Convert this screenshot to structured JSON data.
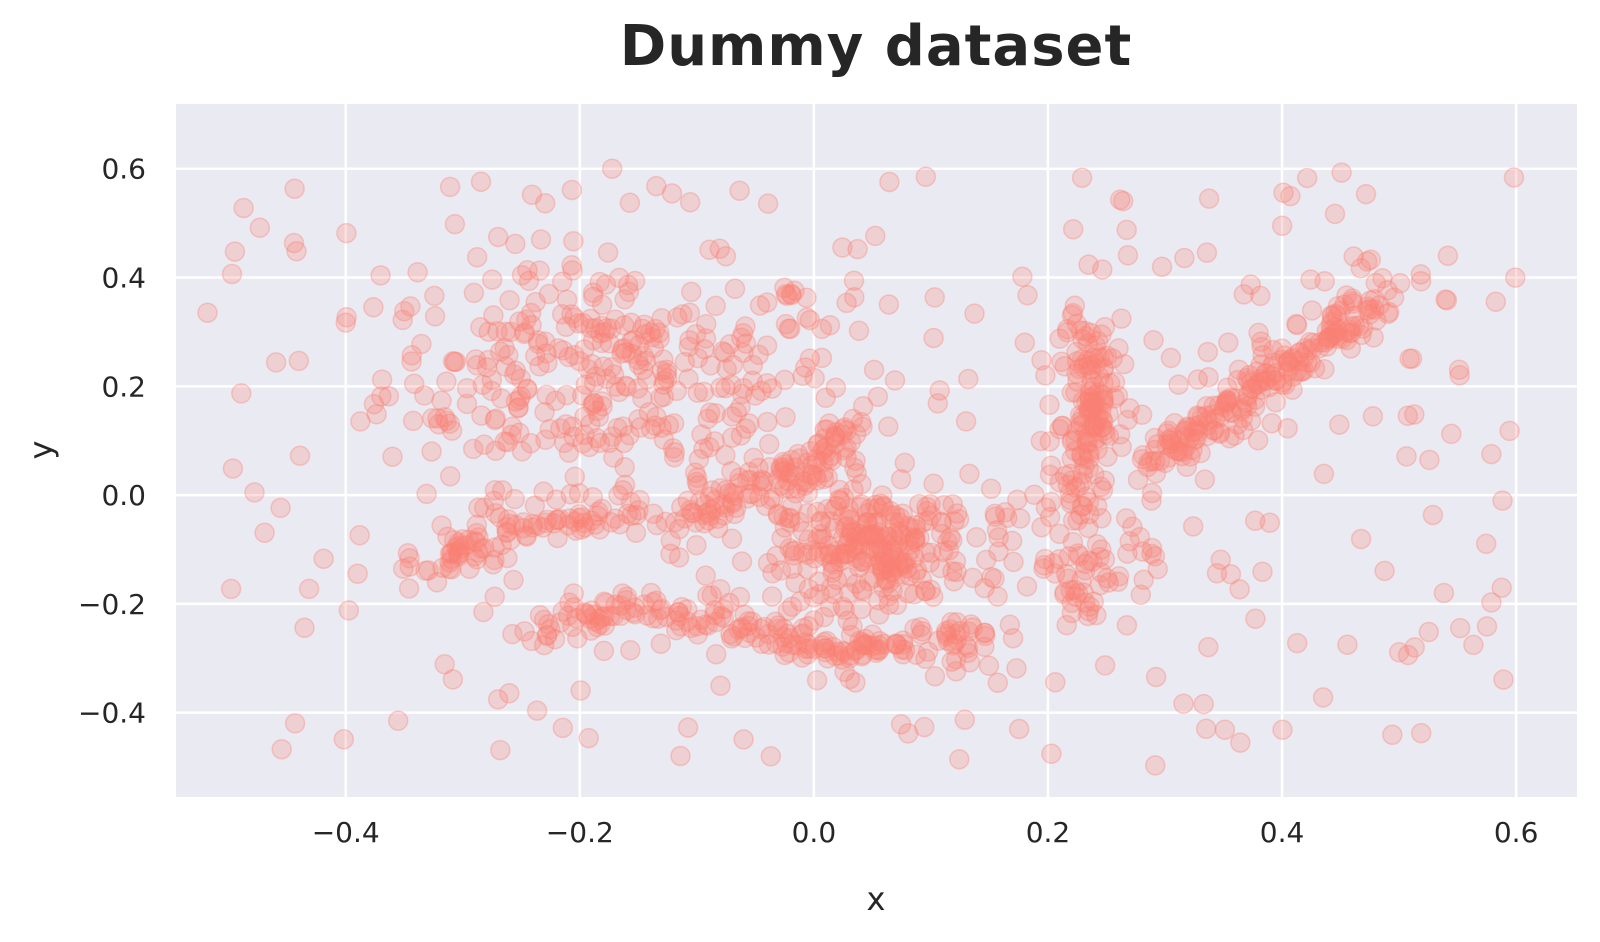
{
  "title": "Dummy dataset",
  "chart_data": {
    "type": "scatter",
    "title": "Dummy dataset",
    "xlabel": "x",
    "ylabel": "y",
    "xlim": [
      -0.545,
      0.652
    ],
    "ylim": [
      -0.555,
      0.719
    ],
    "xticks": [
      -0.4,
      -0.2,
      0.0,
      0.2,
      0.4,
      0.6
    ],
    "xtick_labels": [
      "−0.4",
      "−0.2",
      "0.0",
      "0.2",
      "0.4",
      "0.6"
    ],
    "yticks": [
      -0.4,
      -0.2,
      0.0,
      0.2,
      0.4,
      0.6
    ],
    "ytick_labels": [
      "−0.4",
      "−0.2",
      "0.0",
      "0.2",
      "0.4",
      "0.6"
    ],
    "grid": true,
    "style": "seaborn-darkgrid",
    "marker": {
      "shape": "circle",
      "color": "#FA8072",
      "alpha": 0.25,
      "radius_px": 9.5
    },
    "n_points_approx": 1500,
    "structure": [
      {
        "name": "upper-left cloud",
        "kind": "blob",
        "center": [
          -0.17,
          0.22
        ],
        "spread": [
          0.1,
          0.1
        ],
        "n": 300
      },
      {
        "name": "middle curve",
        "kind": "curve",
        "points": [
          [
            -0.33,
            -0.15
          ],
          [
            -0.28,
            -0.08
          ],
          [
            -0.22,
            -0.05
          ],
          [
            -0.1,
            -0.04
          ],
          [
            -0.05,
            0.0
          ],
          [
            0.0,
            0.06
          ],
          [
            0.03,
            0.13
          ]
        ],
        "width": 0.015,
        "n": 220
      },
      {
        "name": "lower curve",
        "kind": "curve",
        "points": [
          [
            -0.24,
            -0.26
          ],
          [
            -0.15,
            -0.21
          ],
          [
            -0.08,
            -0.23
          ],
          [
            0.0,
            -0.28
          ],
          [
            0.06,
            -0.29
          ],
          [
            0.15,
            -0.25
          ]
        ],
        "width": 0.014,
        "n": 200
      },
      {
        "name": "center dense cluster",
        "kind": "blob",
        "center": [
          0.05,
          -0.1
        ],
        "spread": [
          0.04,
          0.05
        ],
        "n": 200
      },
      {
        "name": "center halo",
        "kind": "blob",
        "center": [
          0.1,
          -0.1
        ],
        "spread": [
          0.09,
          0.06
        ],
        "n": 80
      },
      {
        "name": "vertical stroke",
        "kind": "curve",
        "points": [
          [
            0.23,
            -0.03
          ],
          [
            0.235,
            0.1
          ],
          [
            0.24,
            0.2
          ],
          [
            0.23,
            0.32
          ]
        ],
        "width": 0.01,
        "n": 140
      },
      {
        "name": "lower stroke tail",
        "kind": "blob",
        "center": [
          0.23,
          -0.13
        ],
        "spread": [
          0.02,
          0.06
        ],
        "n": 40
      },
      {
        "name": "diagonal line",
        "kind": "curve",
        "points": [
          [
            0.29,
            0.05
          ],
          [
            0.33,
            0.13
          ],
          [
            0.38,
            0.21
          ],
          [
            0.43,
            0.28
          ],
          [
            0.49,
            0.37
          ]
        ],
        "width": 0.014,
        "n": 220
      },
      {
        "name": "uniform noise",
        "kind": "uniform",
        "x": [
          -0.5,
          0.6
        ],
        "y": [
          -0.5,
          0.6
        ],
        "n": 320
      }
    ]
  }
}
